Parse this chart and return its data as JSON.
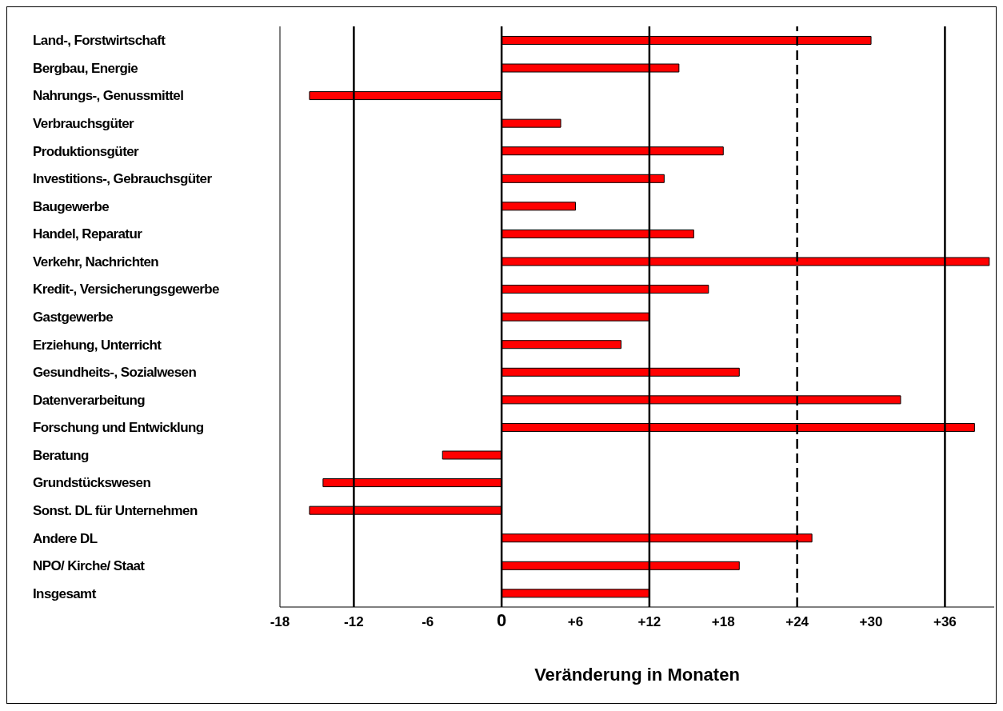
{
  "chart_data": {
    "type": "bar",
    "orientation": "horizontal",
    "xlabel": "Veränderung in Monaten",
    "categories": [
      "Land-, Forstwirtschaft",
      "Bergbau, Energie",
      "Nahrungs-, Genussmittel",
      "Verbrauchsgüter",
      "Produktionsgüter",
      "Investitions-, Gebrauchsgüter",
      "Baugewerbe",
      "Handel, Reparatur",
      "Verkehr, Nachrichten",
      "Kredit-, Versicherungsgewerbe",
      "Gastgewerbe",
      "Erziehung, Unterricht",
      "Gesundheits-, Sozialwesen",
      "Datenverarbeitung",
      "Forschung und Entwicklung",
      "Beratung",
      "Grundstückswesen",
      "Sonst. DL für Unternehmen",
      "Andere DL",
      "NPO/ Kirche/ Staat",
      "Insgesamt"
    ],
    "values": [
      30.0,
      14.4,
      -15.6,
      4.8,
      18.0,
      13.2,
      6.0,
      15.6,
      39.6,
      16.8,
      12.0,
      9.7,
      19.3,
      32.4,
      38.4,
      -4.8,
      -14.5,
      -15.6,
      25.2,
      19.3,
      12.0
    ],
    "color": "#ff0000",
    "xlim": [
      -18,
      40
    ],
    "xticks": [
      -18,
      -12,
      -6,
      0,
      {
        "value": 6,
        "label": "+6"
      },
      {
        "value": 12,
        "label": "+12"
      },
      {
        "value": 18,
        "label": "+18"
      },
      {
        "value": 24,
        "label": "+24"
      },
      {
        "value": 30,
        "label": "+30"
      },
      {
        "value": 36,
        "label": "+36"
      }
    ],
    "grid": false,
    "ref_lines": [
      {
        "axis": "x",
        "value": -12,
        "color": "#000000",
        "line_style": "solid"
      },
      {
        "axis": "x",
        "value": 0,
        "color": "#000000",
        "line_style": "solid"
      },
      {
        "axis": "x",
        "value": 12,
        "color": "#000000",
        "line_style": "solid"
      },
      {
        "axis": "x",
        "value": 24,
        "color": "#000000",
        "line_style": "dashed"
      },
      {
        "axis": "x",
        "value": 36,
        "color": "#000000",
        "line_style": "solid"
      }
    ]
  }
}
